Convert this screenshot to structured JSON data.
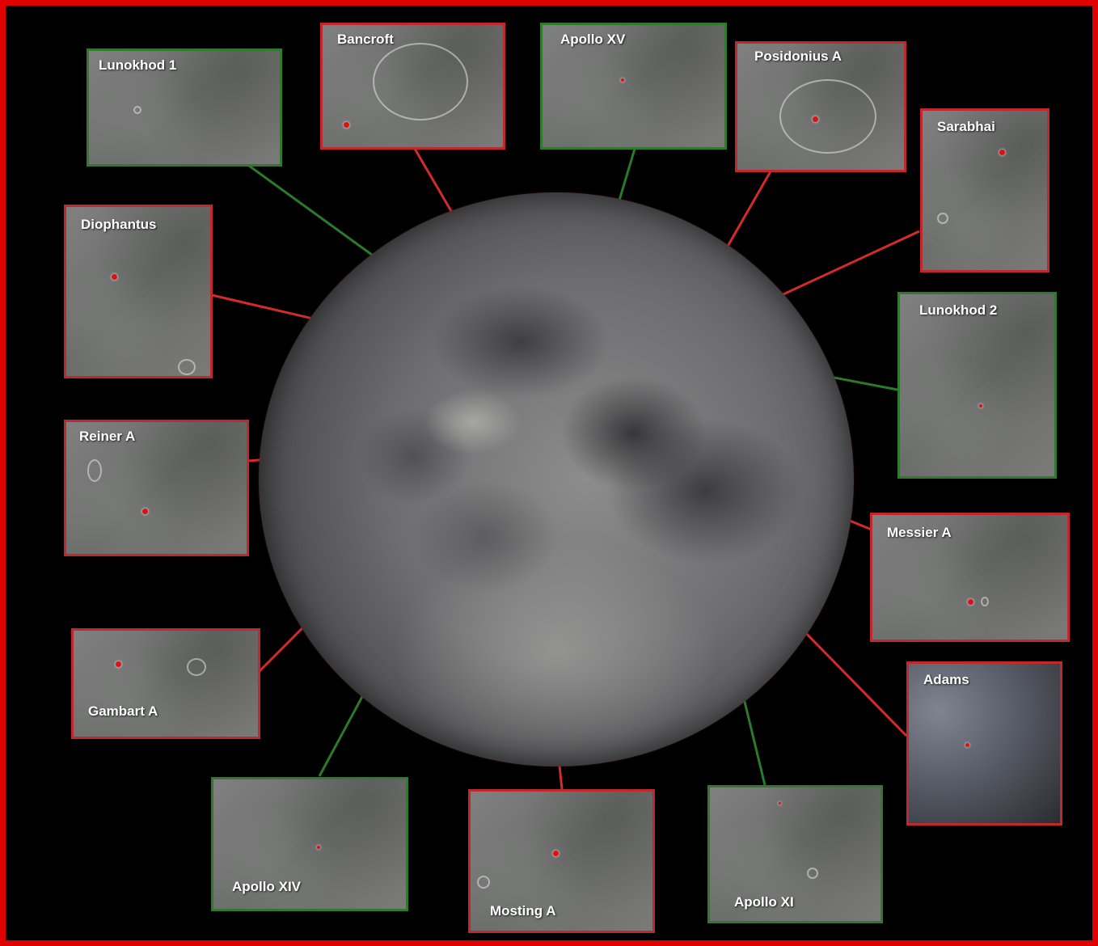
{
  "frame_color": "#e00000",
  "colors": {
    "red_line": "#d42a2a",
    "green_line": "#2a7a2a"
  },
  "insets": [
    {
      "id": "lunokhod-1",
      "label": "Lunokhod 1",
      "border": "green"
    },
    {
      "id": "bancroft",
      "label": "Bancroft",
      "border": "red"
    },
    {
      "id": "apollo-xv",
      "label": "Apollo XV",
      "border": "green"
    },
    {
      "id": "posidonius-a",
      "label": "Posidonius A",
      "border": "red"
    },
    {
      "id": "sarabhai",
      "label": "Sarabhai",
      "border": "red"
    },
    {
      "id": "diophantus",
      "label": "Diophantus",
      "border": "red"
    },
    {
      "id": "lunokhod-2",
      "label": "Lunokhod 2",
      "border": "green"
    },
    {
      "id": "reiner-a",
      "label": "Reiner A",
      "border": "red"
    },
    {
      "id": "messier-a",
      "label": "Messier A",
      "border": "red"
    },
    {
      "id": "gambart-a",
      "label": "Gambart A",
      "border": "red"
    },
    {
      "id": "adams",
      "label": "Adams",
      "border": "red"
    },
    {
      "id": "apollo-xiv",
      "label": "Apollo XIV",
      "border": "green"
    },
    {
      "id": "mosting-a",
      "label": "Mosting A",
      "border": "red"
    },
    {
      "id": "apollo-xi",
      "label": "Apollo XI",
      "border": "green"
    }
  ]
}
